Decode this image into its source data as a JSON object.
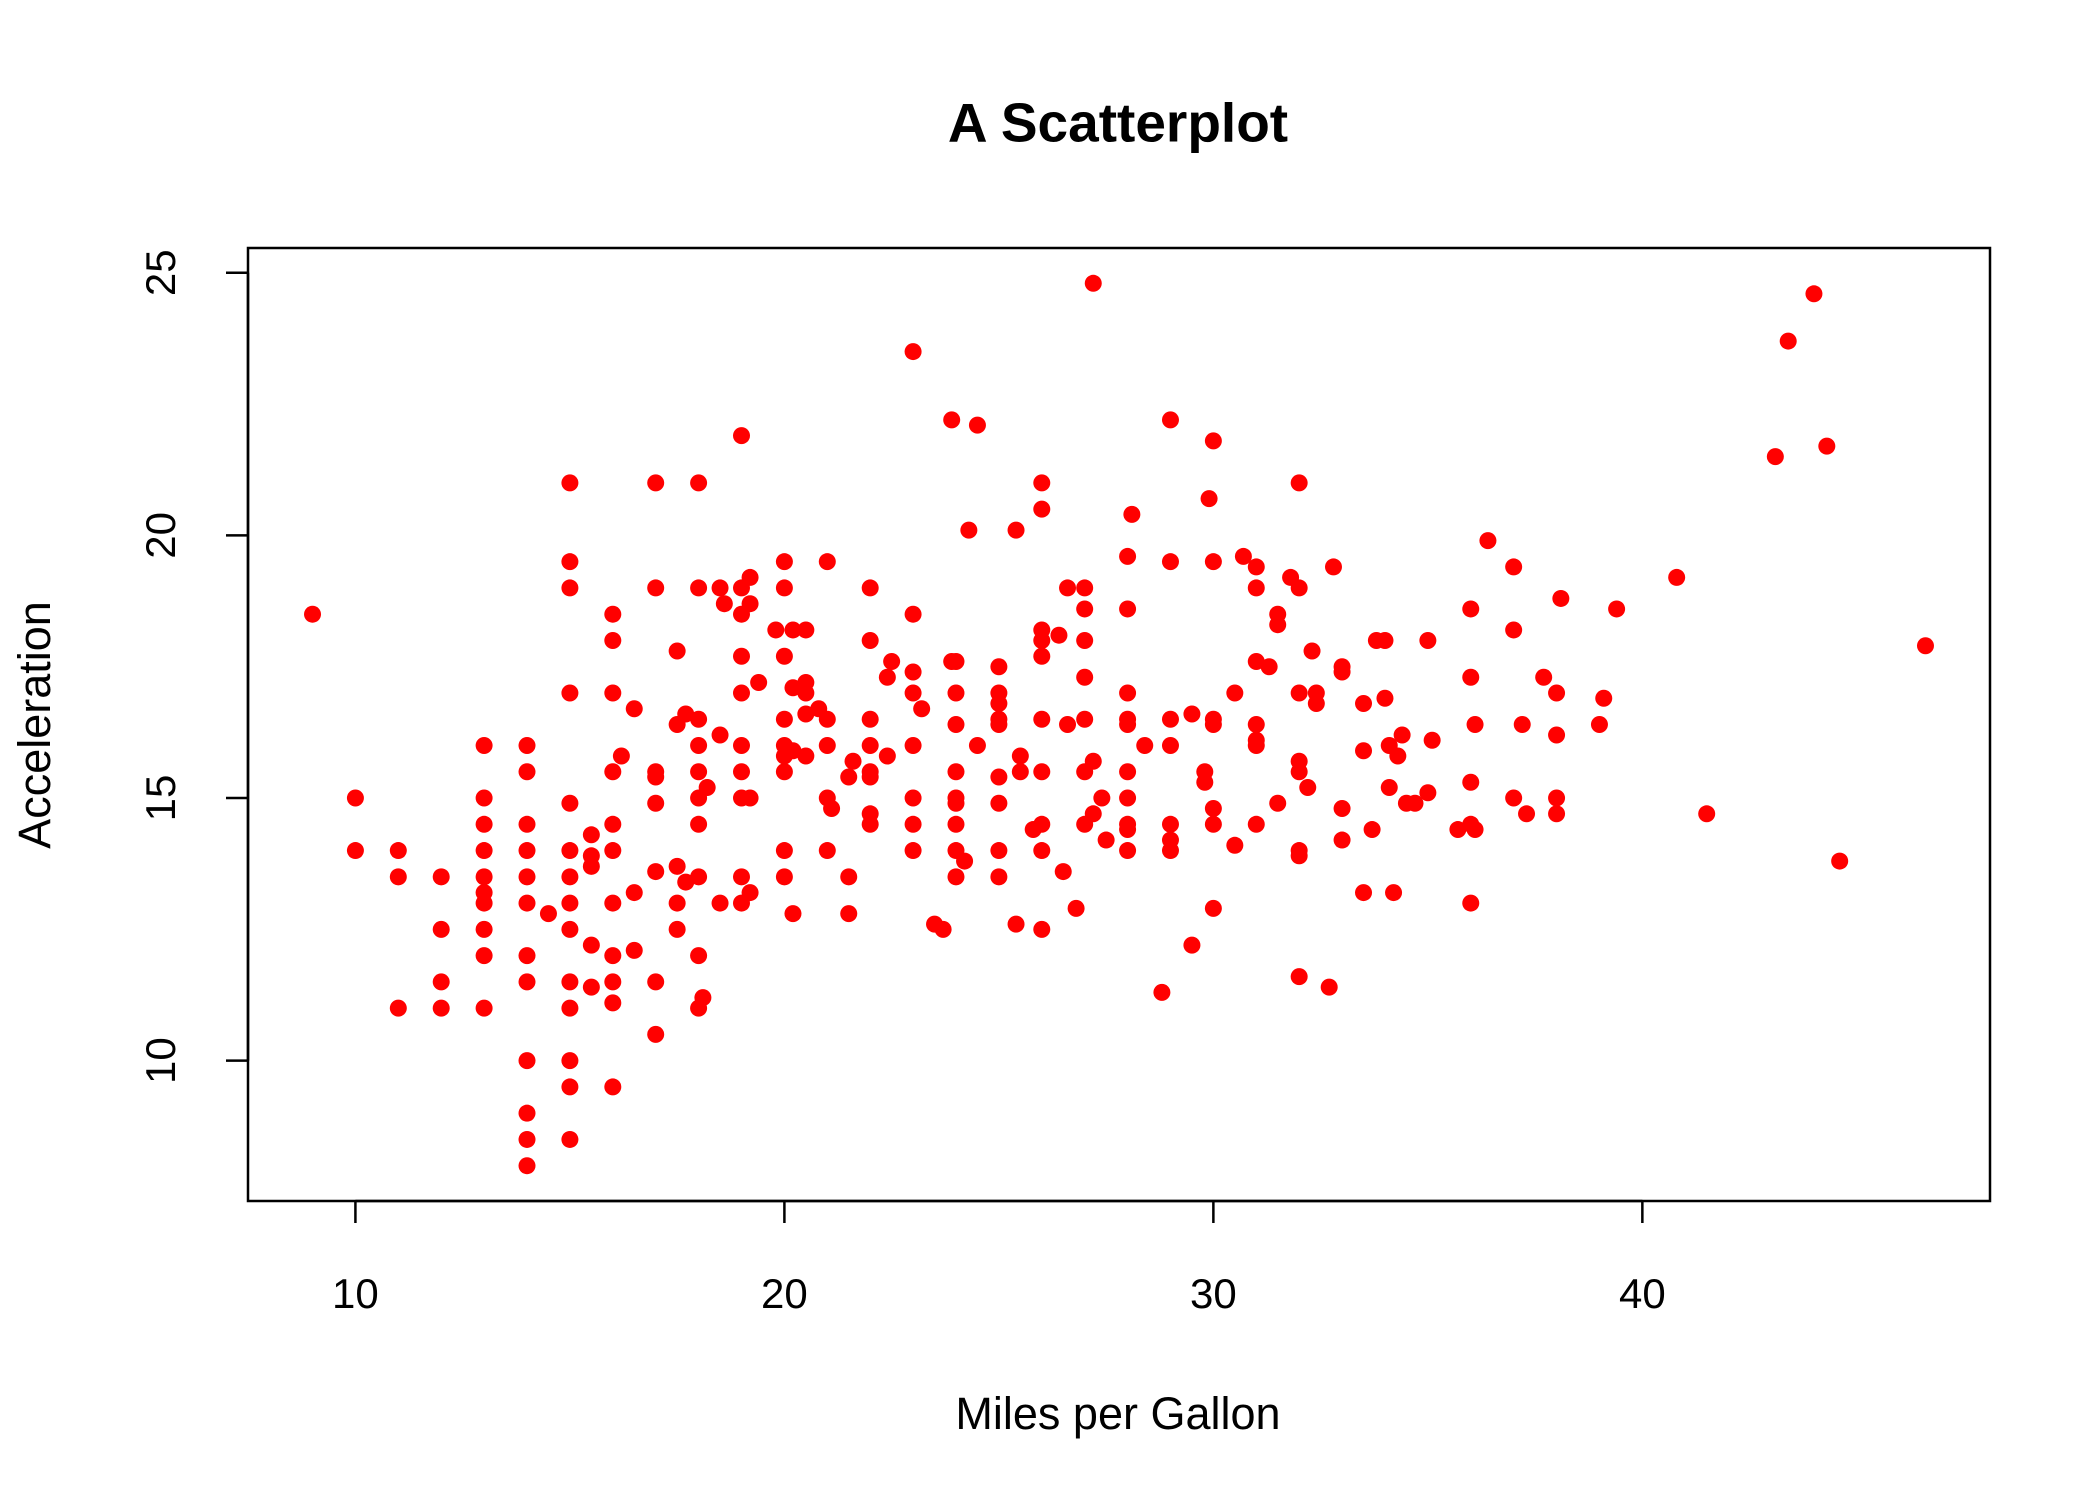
{
  "chart_data": {
    "type": "scatter",
    "title": "A Scatterplot",
    "x_label": "Miles per Gallon",
    "y_label": "Acceleration",
    "color": "#ff0000",
    "xlim": [
      7.496,
      48.104
    ],
    "ylim": [
      7.328,
      25.472
    ],
    "xticks": [
      10,
      20,
      30,
      40
    ],
    "yticks": [
      10,
      15,
      20,
      25
    ],
    "x": [
      9,
      10,
      10,
      11,
      11,
      11,
      12,
      12,
      12,
      12,
      13,
      13,
      13,
      13,
      13,
      13,
      13,
      13,
      13,
      13,
      14,
      14,
      14,
      14,
      14,
      14,
      14,
      14,
      14,
      14,
      14,
      14,
      14.5,
      15,
      15,
      15,
      15,
      15,
      15,
      15,
      15,
      15,
      15,
      15,
      15,
      15,
      15,
      15.5,
      15.5,
      15.5,
      15.5,
      15.5,
      16,
      16,
      16,
      16,
      16,
      16,
      16,
      16,
      16,
      16,
      16,
      16.2,
      16.5,
      16.5,
      16.5,
      17,
      17,
      17,
      17,
      17,
      17,
      17,
      17,
      17.5,
      17.5,
      17.5,
      17.5,
      17.5,
      17.7,
      17.7,
      18,
      18,
      18,
      18,
      18,
      18,
      18,
      18,
      18,
      18,
      18.1,
      18.2,
      18.5,
      18.5,
      18.5,
      18.6,
      19,
      19,
      19,
      19,
      19,
      19,
      19,
      19,
      19,
      19,
      19.2,
      19.2,
      19.2,
      19.2,
      19.4,
      19.8,
      20,
      20,
      20,
      20,
      20,
      20,
      20,
      20,
      20,
      20.2,
      20.2,
      20.2,
      20.2,
      20.5,
      20.5,
      20.5,
      20.5,
      20.5,
      20.8,
      21,
      21,
      21,
      21,
      21,
      21.1,
      21.5,
      21.5,
      21.5,
      21.6,
      22,
      22,
      22,
      22,
      22,
      22,
      22,
      22,
      22.4,
      22.4,
      22.5,
      23,
      23,
      23,
      23,
      23,
      23,
      23,
      23,
      23.2,
      23.5,
      23.7,
      23.9,
      23.9,
      24,
      24,
      24,
      24,
      24,
      24,
      24,
      24,
      24,
      24.2,
      24.3,
      24.5,
      24.5,
      25,
      25,
      25,
      25,
      25,
      25,
      25,
      25,
      25,
      25.4,
      25.4,
      25.5,
      25.5,
      25.8,
      26,
      26,
      26,
      26,
      26,
      26,
      26,
      26,
      26,
      26,
      26.4,
      26.5,
      26.6,
      26.6,
      26.8,
      27,
      27,
      27,
      27,
      27,
      27,
      27,
      27.2,
      27.2,
      27.2,
      27.4,
      27.5,
      28,
      28,
      28,
      28,
      28,
      28,
      28,
      28,
      28,
      28,
      28.1,
      28.4,
      28.8,
      29,
      29,
      29,
      29,
      29,
      29,
      29,
      29.5,
      29.5,
      29.8,
      29.8,
      29.9,
      30,
      30,
      30,
      30,
      30,
      30,
      30,
      30.5,
      30.5,
      30.7,
      31,
      31,
      31,
      31,
      31,
      31,
      31,
      31.3,
      31.5,
      31.5,
      31.5,
      31.8,
      32,
      32,
      32,
      32,
      32,
      32,
      32,
      32,
      32.2,
      32.3,
      32.4,
      32.4,
      32.7,
      32.8,
      33,
      33,
      33,
      33,
      33.5,
      33.5,
      33.5,
      33.7,
      33.8,
      34,
      34,
      34.1,
      34.1,
      34.2,
      34.3,
      34.4,
      34.5,
      34.7,
      35,
      35,
      35.1,
      35.7,
      36,
      36,
      36,
      36,
      36,
      36.1,
      36.1,
      36.4,
      37,
      37,
      37,
      37.2,
      37.3,
      37.7,
      38,
      38,
      38,
      38,
      38.1,
      39,
      39.1,
      39.4,
      40.8,
      41.5,
      43.1,
      43.4,
      44,
      44.3,
      44.6,
      46.6
    ],
    "y": [
      18.5,
      15,
      14,
      14,
      13.5,
      11,
      13.5,
      12.5,
      11.5,
      11,
      16,
      15,
      14.5,
      14,
      13.5,
      13.2,
      13,
      12.5,
      12,
      11,
      16,
      15.5,
      14.5,
      14,
      13.5,
      13,
      12,
      11.5,
      10,
      9,
      8.5,
      8,
      12.8,
      21,
      19.5,
      19,
      17,
      14.9,
      14,
      13.5,
      13,
      12.5,
      11.5,
      11,
      10,
      9.5,
      8.5,
      14.3,
      13.9,
      13.7,
      12.2,
      11.4,
      18.5,
      18,
      17,
      15.5,
      14.5,
      14,
      13,
      12,
      11.5,
      11.1,
      9.5,
      15.8,
      16.7,
      13.2,
      12.1,
      21,
      19,
      15.5,
      15.4,
      14.9,
      13.6,
      11.5,
      10.5,
      17.8,
      16.4,
      13.7,
      13,
      12.5,
      16.6,
      13.4,
      21,
      19,
      16.5,
      16,
      15.5,
      15,
      14.5,
      13.5,
      12,
      11,
      11.2,
      15.2,
      19,
      16.2,
      13,
      18.7,
      21.9,
      19,
      18.5,
      17.7,
      17,
      16,
      15.5,
      15,
      13.5,
      13,
      19.2,
      18.7,
      15,
      13.2,
      17.2,
      18.2,
      19.5,
      19,
      17.7,
      16.5,
      16,
      15.8,
      15.5,
      14,
      13.5,
      18.2,
      17.1,
      15.9,
      12.8,
      18.2,
      17.2,
      17,
      16.6,
      15.8,
      16.7,
      19.5,
      16.5,
      16,
      15,
      14,
      14.8,
      15.4,
      13.5,
      12.8,
      15.7,
      19,
      18,
      16.5,
      16,
      15.5,
      15.4,
      14.7,
      14.5,
      17.3,
      15.8,
      17.6,
      23.5,
      18.5,
      17.4,
      17,
      16,
      15,
      14.5,
      14,
      16.7,
      12.6,
      12.5,
      22.2,
      17.6,
      17.6,
      17,
      16.4,
      15.5,
      15,
      14.9,
      14.5,
      14,
      13.5,
      13.8,
      20.1,
      22.1,
      16,
      17.5,
      17,
      16.8,
      16.5,
      16.4,
      15.4,
      14.9,
      14,
      13.5,
      20.1,
      12.6,
      15.8,
      15.5,
      14.4,
      21,
      20.5,
      18.2,
      18,
      17.7,
      16.5,
      15.5,
      14.5,
      14,
      12.5,
      18.1,
      13.6,
      19,
      16.4,
      12.9,
      19,
      18.6,
      18,
      17.3,
      16.5,
      15.5,
      14.5,
      24.8,
      15.7,
      14.7,
      15,
      14.2,
      19.6,
      18.6,
      17,
      16.5,
      16.4,
      15.5,
      15,
      14.5,
      14.4,
      14,
      20.4,
      16,
      11.3,
      22.2,
      19.5,
      16.5,
      16,
      14.5,
      14.2,
      14,
      16.6,
      12.2,
      15.5,
      15.3,
      20.7,
      21.8,
      19.5,
      16.5,
      16.4,
      14.8,
      14.5,
      12.9,
      17,
      14.1,
      19.6,
      19.4,
      19,
      17.6,
      16.4,
      16.1,
      16,
      14.5,
      17.5,
      18.5,
      18.3,
      14.9,
      19.2,
      21,
      19,
      17,
      15.7,
      15.5,
      14,
      13.9,
      11.6,
      15.2,
      17.8,
      17,
      16.8,
      11.4,
      19.4,
      17.5,
      17.4,
      14.8,
      14.2,
      16.8,
      15.9,
      13.2,
      14.4,
      18,
      18,
      16.9,
      16,
      15.2,
      13.2,
      15.8,
      16.2,
      14.9,
      14.9,
      18,
      15.1,
      16.1,
      14.4,
      18.6,
      17.3,
      15.3,
      14.5,
      13,
      16.4,
      14.4,
      19.9,
      19.4,
      18.2,
      15,
      16.4,
      14.7,
      17.3,
      17,
      16.2,
      15,
      14.7,
      18.8,
      16.4,
      16.9,
      18.6,
      19.2,
      14.7,
      21.5,
      23.7,
      24.6,
      21.7,
      13.8,
      17.9
    ]
  }
}
